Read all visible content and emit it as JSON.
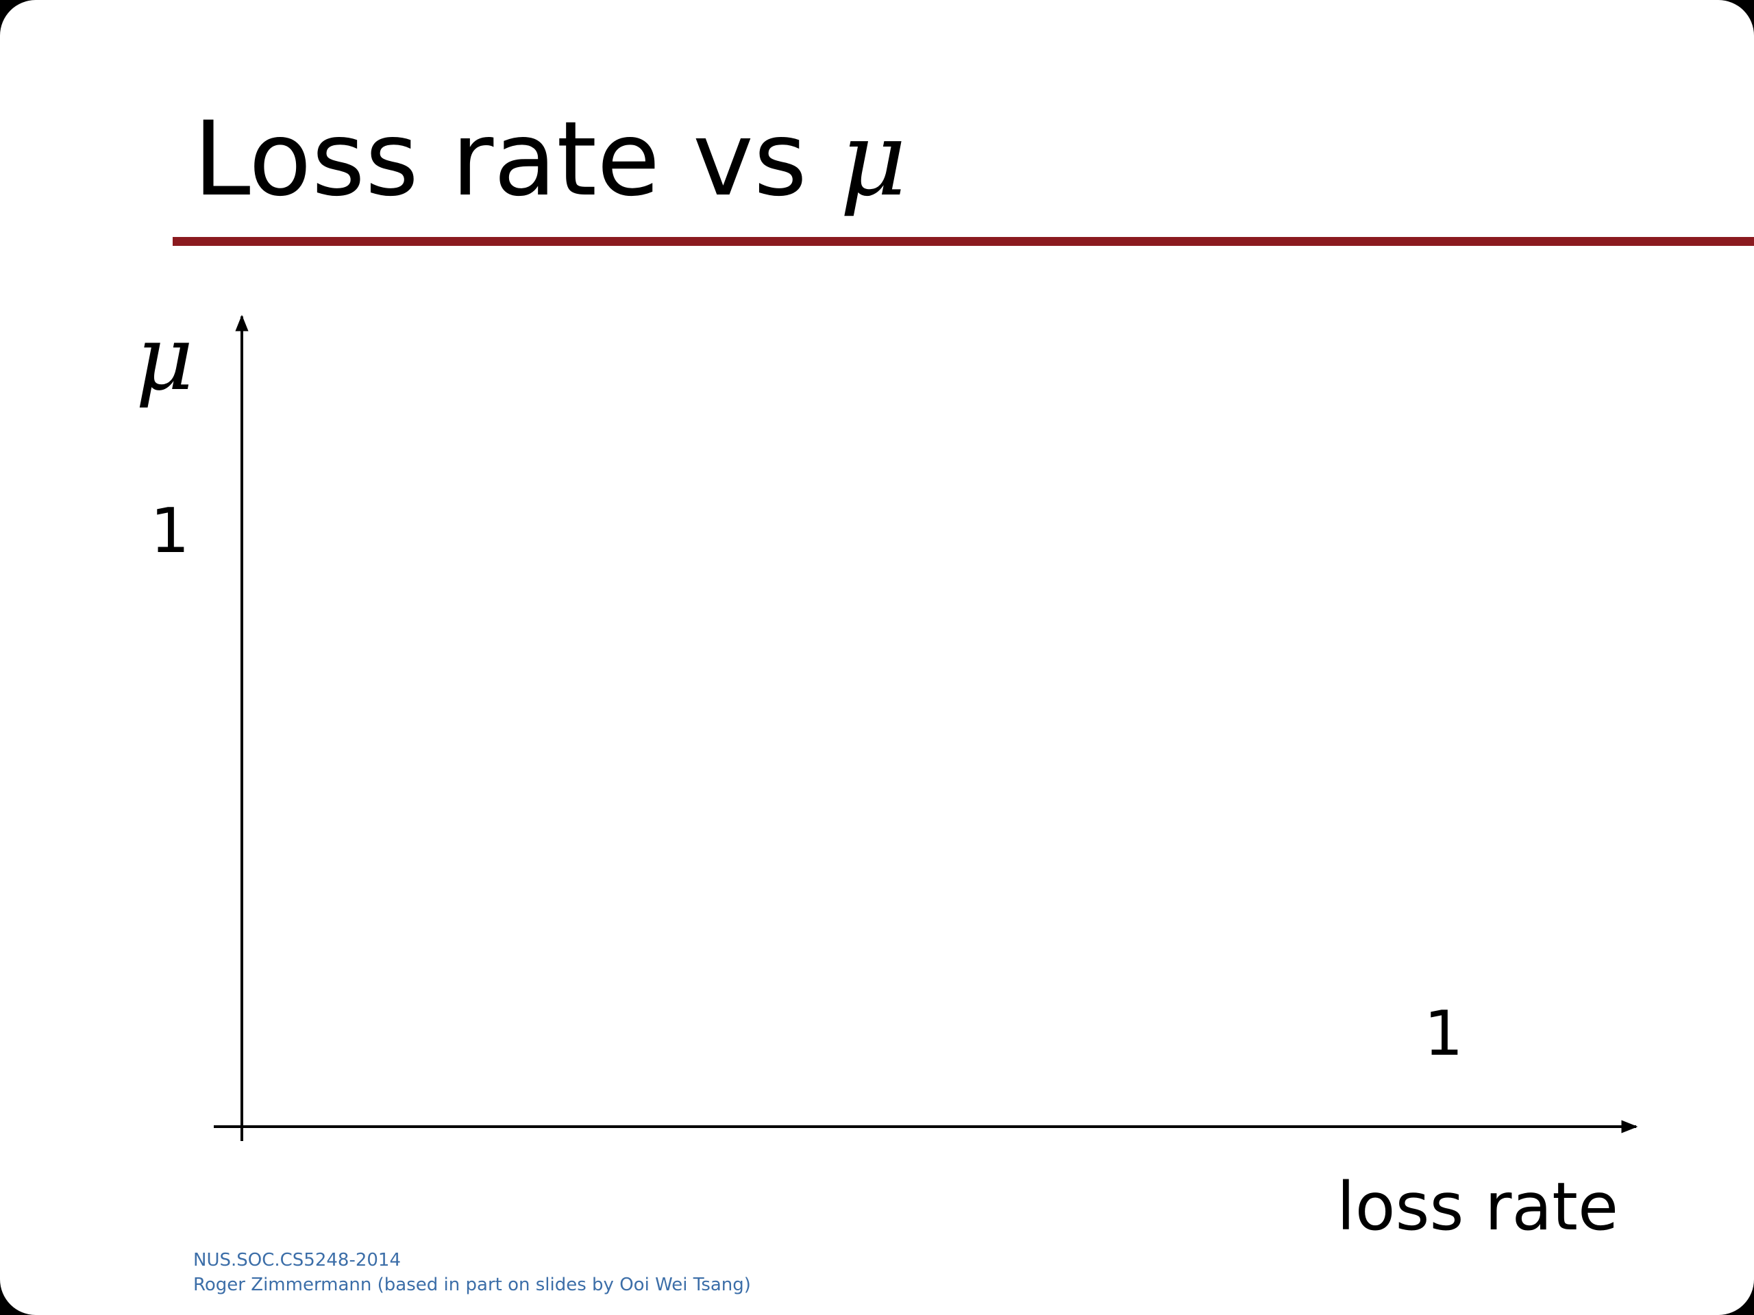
{
  "slide": {
    "title_text": "Loss rate vs ",
    "title_symbol": "μ",
    "accent_color": "#8b1a1f"
  },
  "diagram": {
    "y_axis_symbol": "μ",
    "y_tick_label": "1",
    "x_tick_label": "1",
    "x_axis_label": "loss rate"
  },
  "footer": {
    "line1": "NUS.SOC.CS5248-2014",
    "line2": "Roger Zimmermann (based in part on slides by Ooi Wei Tsang)"
  }
}
